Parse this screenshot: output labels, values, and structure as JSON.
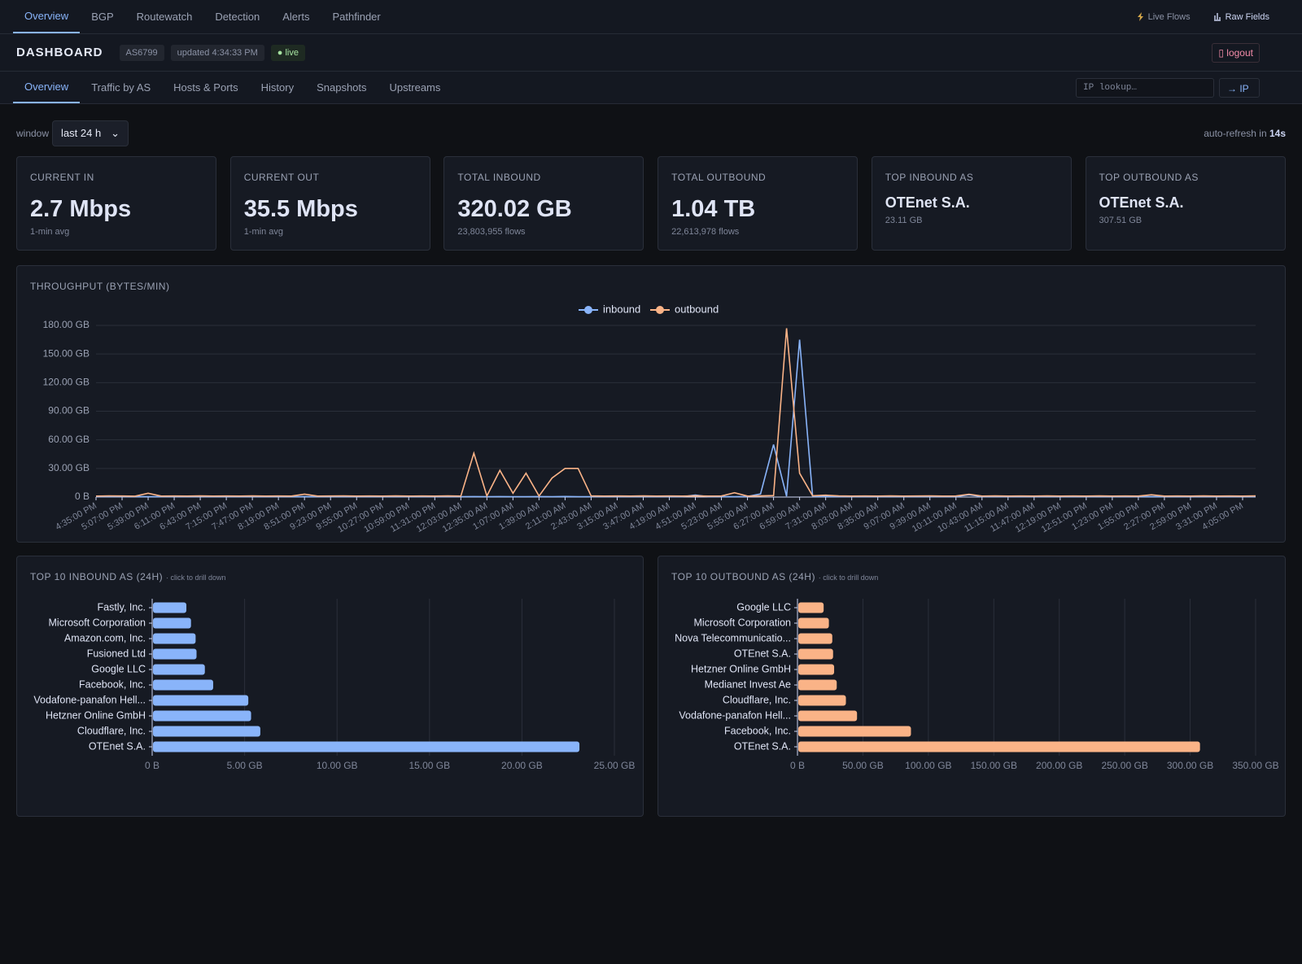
{
  "nav": {
    "tabs": [
      "Overview",
      "BGP",
      "Routewatch",
      "Detection",
      "Alerts",
      "Pathfinder"
    ],
    "right": [
      "Live Flows",
      "Raw Fields"
    ]
  },
  "header": {
    "title": "DASHBOARD",
    "asn": "AS6799",
    "updated": "updated 4:34:33 PM",
    "status": "live",
    "logout": "logout"
  },
  "subnav": {
    "tabs": [
      "Overview",
      "Traffic by AS",
      "Hosts & Ports",
      "History",
      "Snapshots",
      "Upstreams"
    ],
    "ip_placeholder": "IP lookup…",
    "ip_button": "→ IP"
  },
  "controls": {
    "window_label": "window",
    "window_value": "last 24 h",
    "refresh_prefix": "auto-refresh in",
    "refresh_value": "14s"
  },
  "cards": [
    {
      "label": "CURRENT IN",
      "value": "2.7 Mbps",
      "sub": "1-min avg"
    },
    {
      "label": "CURRENT OUT",
      "value": "35.5 Mbps",
      "sub": "1-min avg"
    },
    {
      "label": "TOTAL INBOUND",
      "value": "320.02 GB",
      "sub": "23,803,955 flows"
    },
    {
      "label": "TOTAL OUTBOUND",
      "value": "1.04 TB",
      "sub": "22,613,978 flows"
    },
    {
      "label": "TOP INBOUND AS",
      "value": "OTEnet S.A.",
      "sub": "23.11 GB"
    },
    {
      "label": "TOP OUTBOUND AS",
      "value": "OTEnet S.A.",
      "sub": "307.51 GB"
    }
  ],
  "chart_data": [
    {
      "type": "line",
      "title": "THROUGHPUT (BYTES/MIN)",
      "categories": [
        "4:35:00 PM",
        null,
        "5:07:00 PM",
        null,
        "5:39:00 PM",
        null,
        "6:11:00 PM",
        null,
        "6:43:00 PM",
        null,
        "7:15:00 PM",
        null,
        "7:47:00 PM",
        null,
        "8:19:00 PM",
        null,
        "8:51:00 PM",
        null,
        "9:23:00 PM",
        null,
        "9:55:00 PM",
        null,
        "10:27:00 PM",
        null,
        "10:59:00 PM",
        null,
        "11:31:00 PM",
        null,
        "12:03:00 AM",
        null,
        "12:35:00 AM",
        null,
        "1:07:00 AM",
        null,
        "1:39:00 AM",
        null,
        "2:11:00 AM",
        null,
        "2:43:00 AM",
        null,
        "3:15:00 AM",
        null,
        "3:47:00 AM",
        null,
        "4:19:00 AM",
        null,
        "4:51:00 AM",
        null,
        "5:23:00 AM",
        null,
        "5:55:00 AM",
        null,
        "6:27:00 AM",
        null,
        "6:59:00 AM",
        null,
        "7:31:00 AM",
        null,
        "8:03:00 AM",
        null,
        "8:35:00 AM",
        null,
        "9:07:00 AM",
        null,
        "9:39:00 AM",
        null,
        "10:11:00 AM",
        null,
        "10:43:00 AM",
        null,
        "11:15:00 AM",
        null,
        "11:47:00 AM",
        null,
        "12:19:00 PM",
        null,
        "12:51:00 PM",
        null,
        "1:23:00 PM",
        null,
        "1:55:00 PM",
        null,
        "2:27:00 PM",
        null,
        "2:59:00 PM",
        null,
        "3:31:00 PM",
        null,
        "4:05:00 PM",
        null
      ],
      "series": [
        {
          "name": "inbound",
          "color": "#89b4fa",
          "values": [
            0.4,
            0.5,
            0.4,
            0.6,
            0.4,
            0.5,
            0.4,
            0.4,
            0.5,
            0.4,
            0.4,
            0.5,
            0.4,
            0.4,
            0.6,
            0.4,
            0.5,
            0.4,
            0.4,
            0.5,
            0.4,
            0.4,
            0.5,
            0.4,
            0.4,
            0.5,
            0.4,
            0.6,
            0.4,
            0.5,
            0.4,
            0.5,
            0.4,
            0.4,
            0.5,
            0.4,
            0.6,
            0.4,
            0.4,
            0.5,
            0.4,
            0.5,
            0.4,
            0.4,
            0.5,
            0.4,
            2.1,
            0.4,
            0.5,
            0.4,
            0.6,
            3.2,
            55.0,
            0.8,
            165.0,
            0.7,
            0.6,
            0.5,
            0.4,
            0.5,
            0.4,
            0.5,
            0.4,
            0.6,
            0.4,
            0.5,
            0.4,
            2.4,
            0.5,
            0.4,
            0.4,
            0.5,
            0.4,
            0.4,
            0.6,
            0.4,
            0.5,
            0.4,
            0.4,
            0.5,
            0.4,
            0.5,
            0.4,
            0.6,
            0.4,
            0.5,
            0.4,
            0.4,
            0.5,
            0.4
          ]
        },
        {
          "name": "outbound",
          "color": "#fab387",
          "values": [
            1.0,
            1.2,
            1.1,
            0.9,
            4.0,
            1.0,
            1.1,
            1.0,
            1.2,
            1.0,
            1.1,
            1.0,
            1.2,
            1.0,
            1.1,
            1.0,
            3.1,
            1.0,
            1.1,
            1.2,
            1.0,
            1.1,
            1.0,
            1.2,
            1.0,
            1.1,
            1.0,
            1.2,
            1.0,
            46.0,
            1.2,
            28.0,
            4.0,
            25.0,
            1.1,
            20.0,
            30.0,
            30.0,
            1.2,
            1.0,
            1.1,
            1.0,
            1.2,
            1.0,
            1.1,
            1.0,
            1.2,
            1.0,
            1.1,
            4.5,
            1.0,
            1.2,
            1.5,
            177.0,
            25.0,
            1.4,
            2.0,
            1.2,
            1.0,
            1.1,
            1.0,
            1.2,
            1.0,
            1.1,
            1.2,
            1.0,
            1.1,
            3.0,
            1.0,
            1.2,
            1.0,
            1.1,
            1.0,
            1.2,
            1.0,
            1.1,
            1.0,
            1.2,
            1.0,
            1.1,
            1.0,
            2.4,
            1.0,
            1.1,
            1.0,
            1.2,
            1.0,
            1.1,
            1.0,
            1.2
          ]
        }
      ],
      "ylim": [
        0,
        180
      ],
      "yticks": [
        {
          "value": 0,
          "label": "0 B"
        },
        {
          "value": 30,
          "label": "30.00 GB"
        },
        {
          "value": 60,
          "label": "60.00 GB"
        },
        {
          "value": 90,
          "label": "90.00 GB"
        },
        {
          "value": 120,
          "label": "120.00 GB"
        },
        {
          "value": 150,
          "label": "150.00 GB"
        },
        {
          "value": 180,
          "label": "180.00 GB"
        }
      ],
      "grid": true,
      "legend": "top"
    },
    {
      "type": "hbar",
      "title": "TOP 10 INBOUND AS (24H)",
      "subtitle": "· click to drill down",
      "categories": [
        "Fastly, Inc.",
        "Microsoft Corporation",
        "Amazon.com, Inc.",
        "Fusioned Ltd",
        "Google LLC",
        "Facebook, Inc.",
        "Vodafone-panafon Hell...",
        "Hetzner Online GmbH",
        "Cloudflare, Inc.",
        "OTEnet S.A."
      ],
      "values": [
        1.85,
        2.1,
        2.35,
        2.4,
        2.85,
        3.3,
        5.2,
        5.35,
        5.85,
        23.11
      ],
      "color": "#89b4fa",
      "xlim": [
        0,
        25
      ],
      "xticks": [
        {
          "value": 0,
          "label": "0 B"
        },
        {
          "value": 5,
          "label": "5.00 GB"
        },
        {
          "value": 10,
          "label": "10.00 GB"
        },
        {
          "value": 15,
          "label": "15.00 GB"
        },
        {
          "value": 20,
          "label": "20.00 GB"
        },
        {
          "value": 25,
          "label": "25.00 GB"
        }
      ],
      "grid": true
    },
    {
      "type": "hbar",
      "title": "TOP 10 OUTBOUND AS (24H)",
      "subtitle": "· click to drill down",
      "categories": [
        "Google LLC",
        "Microsoft Corporation",
        "Nova Telecommunicatio...",
        "OTEnet S.A.",
        "Hetzner Online GmbH",
        "Medianet Invest Ae",
        "Cloudflare, Inc.",
        "Vodafone-panafon Hell...",
        "Facebook, Inc.",
        "OTEnet S.A."
      ],
      "values": [
        20,
        24,
        26.6,
        27.2,
        28,
        30,
        37,
        45.5,
        86.7,
        307.51
      ],
      "color": "#fab387",
      "xlim": [
        0,
        350
      ],
      "xticks": [
        {
          "value": 0,
          "label": "0 B"
        },
        {
          "value": 50,
          "label": "50.00 GB"
        },
        {
          "value": 100,
          "label": "100.00 GB"
        },
        {
          "value": 150,
          "label": "150.00 GB"
        },
        {
          "value": 200,
          "label": "200.00 GB"
        },
        {
          "value": 250,
          "label": "250.00 GB"
        },
        {
          "value": 300,
          "label": "300.00 GB"
        },
        {
          "value": 350,
          "label": "350.00 GB"
        }
      ],
      "grid": true
    }
  ]
}
